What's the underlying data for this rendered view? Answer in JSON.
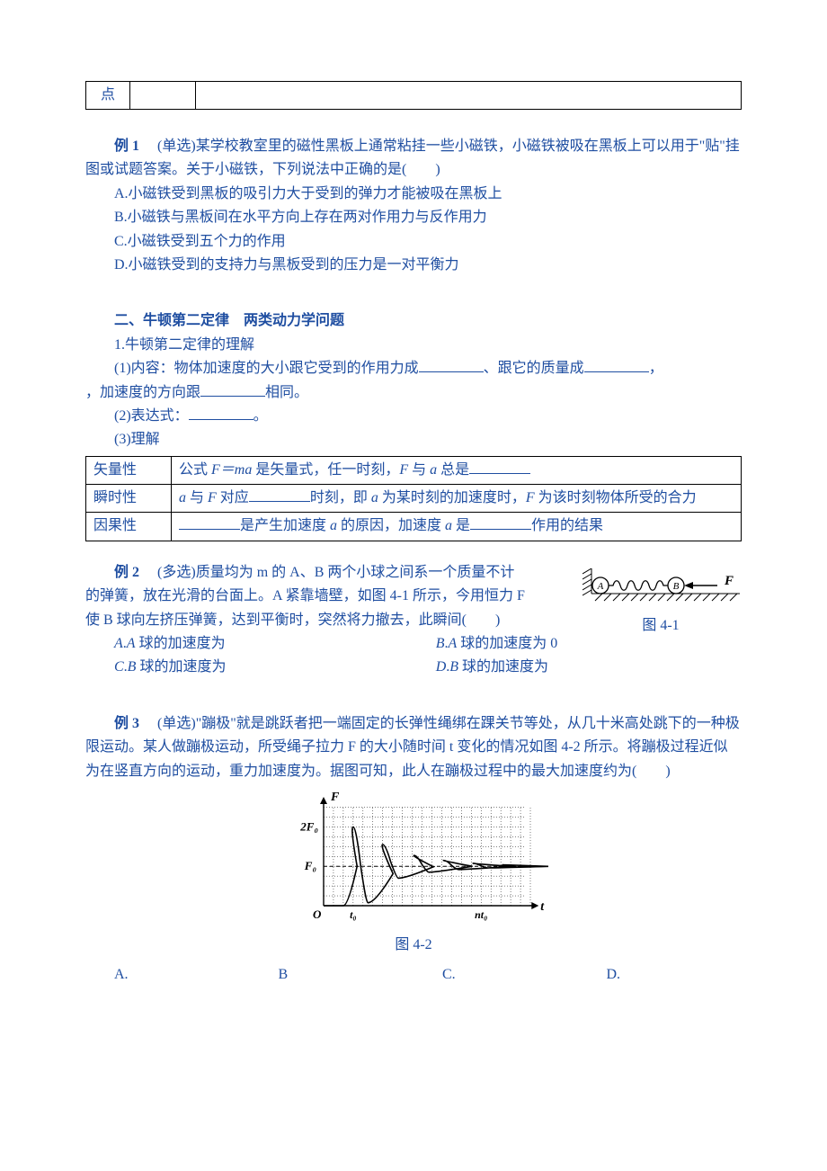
{
  "stub_cell": "点",
  "ex1": {
    "label": "例 1",
    "tag": "(单选)",
    "stem_a": "某学校教室里的磁性黑板上通常粘挂一些小磁铁，小磁铁被吸在黑板上可以用于\"贴\"挂图或试题答案。关于小磁铁，下列说法中正确的是(　　)",
    "A": "A.小磁铁受到黑板的吸引力大于受到的弹力才能被吸在黑板上",
    "B": "B.小磁铁与黑板间在水平方向上存在两对作用力与反作用力",
    "C": "C.小磁铁受到五个力的作用",
    "D": "D.小磁铁受到的支持力与黑板受到的压力是一对平衡力"
  },
  "sec2": {
    "heading": "二、牛顿第二定律　两类动力学问题",
    "line1": "1.牛顿第二定律的理解",
    "l2a": "(1)内容：物体加速度的大小跟它受到的作用力成",
    "l2b": "、跟它的质量成",
    "l2c": "，加速度的方向跟",
    "l2d": "相同。",
    "l3a": "(2)表达式：",
    "l3b": "。",
    "l4": "(3)理解",
    "table": {
      "r1h": "矢量性",
      "r1a": "公式 ",
      "r1b": "F＝ma",
      "r1c": " 是矢量式，任一时刻，",
      "r1d": "F",
      "r1e": " 与 ",
      "r1f": "a",
      "r1g": " 总是",
      "r2h": "瞬时性",
      "r2a": "a",
      "r2b": " 与 ",
      "r2c": "F",
      "r2d": " 对应",
      "r2e": "时刻，即 ",
      "r2f": "a",
      "r2g": " 为某时刻的加速度时，",
      "r2h2": "F",
      "r2i": " 为该时刻物体所受的合力",
      "r3h": "因果性",
      "r3a": "是产生加速度 ",
      "r3b": "a",
      "r3c": " 的原因，加速度 ",
      "r3d": "a",
      "r3e": " 是",
      "r3f": "作用的结果"
    }
  },
  "ex2": {
    "label": "例 2",
    "tag": "(多选)",
    "stem": "质量均为 m 的 A、B 两个小球之间系一个质量不计的弹簧，放在光滑的台面上。A 紧靠墙壁，如图 4-1 所示，今用恒力 F 使 B 球向左挤压弹簧，达到平衡时，突然将力撤去，此瞬间(　　)",
    "A": "A.A 球的加速度为",
    "B": "B.A 球的加速度为 0",
    "C": "C.B 球的加速度为",
    "D": "D.B 球的加速度为",
    "fig_caption": "图 4-1",
    "fig": {
      "labelA": "A",
      "labelB": "B",
      "labelF": "F"
    }
  },
  "ex3": {
    "label": "例 3",
    "tag": "(单选)",
    "stem": "\"蹦极\"就是跳跃者把一端固定的长弹性绳绑在踝关节等处，从几十米高处跳下的一种极限运动。某人做蹦极运动，所受绳子拉力 F 的大小随时间 t 变化的情况如图 4-2 所示。将蹦极过程近似为在竖直方向的运动，重力加速度为。据图可知，此人在蹦极过程中的最大加速度约为(　　)",
    "fig_caption": "图 4-2",
    "axis": {
      "yLabel": "F",
      "y2": "2F₀",
      "y1": "F₀",
      "origin": "O",
      "x1": "t₀",
      "x2": "nt₀",
      "xLabel": "t"
    },
    "A": "A.",
    "B": "B",
    "C": "C.",
    "D": "D.",
    "chart": {
      "colors": {
        "axis": "#000000",
        "grid": "#000000",
        "curve": "#000000",
        "text": "#000000"
      },
      "xlim": [
        0,
        21
      ],
      "ylim": [
        0,
        10.5
      ],
      "ytick_major": [
        4,
        8
      ],
      "xtick_major": [
        3,
        16
      ],
      "amplitudes": [
        8.0,
        6.2,
        5.1,
        4.6,
        4.3,
        4.15
      ],
      "baseline": 4.0,
      "peak_x": [
        3.0,
        6.0,
        9.2,
        12.2,
        15.2,
        18.2
      ],
      "start_rise_x": 2.0,
      "grid_step": 1
    }
  }
}
